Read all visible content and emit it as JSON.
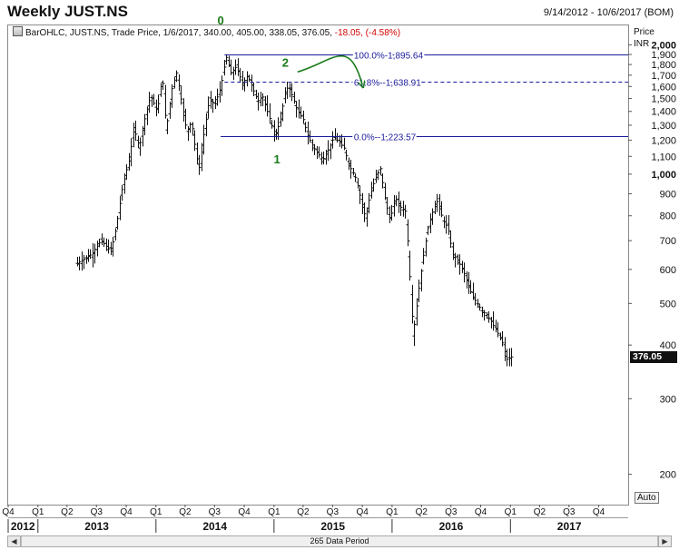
{
  "header": {
    "title": "Weekly JUST.NS",
    "date_range": "9/14/2012 - 10/6/2017 (BOM)"
  },
  "legend": {
    "prefix": "BarOHLC, JUST.NS, Trade Price, 1/6/2017, 340.00, 405.00, 338.05, 376.05,",
    "change": "-18.05, (-4.58%)"
  },
  "axis": {
    "price_label": "Price",
    "currency": "INR",
    "auto_label": "Auto",
    "last_price": "376.05"
  },
  "footer": {
    "data_period": "265 Data Period",
    "scroll_left": "◀",
    "scroll_right": "▶"
  },
  "chart_data": {
    "type": "ohlc",
    "title": "Weekly JUST.NS",
    "y_scale": "log",
    "ylim": [
      170,
      2220
    ],
    "y_ticks": [
      {
        "v": 2000,
        "label": "2,000",
        "bold": true
      },
      {
        "v": 1900,
        "label": "1,900"
      },
      {
        "v": 1800,
        "label": "1,800"
      },
      {
        "v": 1700,
        "label": "1,700"
      },
      {
        "v": 1600,
        "label": "1,600"
      },
      {
        "v": 1500,
        "label": "1,500"
      },
      {
        "v": 1400,
        "label": "1,400"
      },
      {
        "v": 1300,
        "label": "1,300"
      },
      {
        "v": 1200,
        "label": "1,200"
      },
      {
        "v": 1100,
        "label": "1,100"
      },
      {
        "v": 1000,
        "label": "1,000",
        "bold": true
      },
      {
        "v": 900,
        "label": "900"
      },
      {
        "v": 800,
        "label": "800"
      },
      {
        "v": 700,
        "label": "700"
      },
      {
        "v": 600,
        "label": "600"
      },
      {
        "v": 500,
        "label": "500"
      },
      {
        "v": 400,
        "label": "400"
      },
      {
        "v": 300,
        "label": "300"
      },
      {
        "v": 200,
        "label": "200"
      }
    ],
    "x_range": [
      "2012-10-01",
      "2017-12-31"
    ],
    "quarters": [
      {
        "d": "2012-10-01",
        "label": "Q4"
      },
      {
        "d": "2013-01-01",
        "label": "Q1"
      },
      {
        "d": "2013-04-01",
        "label": "Q2"
      },
      {
        "d": "2013-07-01",
        "label": "Q3"
      },
      {
        "d": "2013-10-01",
        "label": "Q4"
      },
      {
        "d": "2014-01-01",
        "label": "Q1"
      },
      {
        "d": "2014-04-01",
        "label": "Q2"
      },
      {
        "d": "2014-07-01",
        "label": "Q3"
      },
      {
        "d": "2014-10-01",
        "label": "Q4"
      },
      {
        "d": "2015-01-01",
        "label": "Q1"
      },
      {
        "d": "2015-04-01",
        "label": "Q2"
      },
      {
        "d": "2015-07-01",
        "label": "Q3"
      },
      {
        "d": "2015-10-01",
        "label": "Q4"
      },
      {
        "d": "2016-01-01",
        "label": "Q1"
      },
      {
        "d": "2016-04-01",
        "label": "Q2"
      },
      {
        "d": "2016-07-01",
        "label": "Q3"
      },
      {
        "d": "2016-10-01",
        "label": "Q4"
      },
      {
        "d": "2017-01-01",
        "label": "Q1"
      },
      {
        "d": "2017-04-01",
        "label": "Q2"
      },
      {
        "d": "2017-07-01",
        "label": "Q3"
      },
      {
        "d": "2017-10-01",
        "label": "Q4"
      }
    ],
    "years": [
      {
        "label": "2012",
        "start": "2012-10-01",
        "end": "2012-12-31"
      },
      {
        "label": "2013",
        "start": "2013-01-01",
        "end": "2013-12-31"
      },
      {
        "label": "2014",
        "start": "2014-01-01",
        "end": "2014-12-31"
      },
      {
        "label": "2015",
        "start": "2015-01-01",
        "end": "2015-12-31"
      },
      {
        "label": "2016",
        "start": "2016-01-01",
        "end": "2016-12-31"
      },
      {
        "label": "2017",
        "start": "2017-01-01",
        "end": "2017-12-31"
      }
    ],
    "price_path": [
      [
        "2013-05-01",
        620
      ],
      [
        "2013-06-15",
        650
      ],
      [
        "2013-07-15",
        700
      ],
      [
        "2013-08-15",
        660
      ],
      [
        "2013-09-01",
        760
      ],
      [
        "2013-09-20",
        940
      ],
      [
        "2013-10-10",
        1080
      ],
      [
        "2013-10-25",
        1280
      ],
      [
        "2013-11-10",
        1150
      ],
      [
        "2013-11-30",
        1380
      ],
      [
        "2013-12-15",
        1520
      ],
      [
        "2014-01-05",
        1400
      ],
      [
        "2014-01-20",
        1700
      ],
      [
        "2014-02-01",
        1260
      ],
      [
        "2014-02-20",
        1600
      ],
      [
        "2014-03-05",
        1720
      ],
      [
        "2014-03-20",
        1480
      ],
      [
        "2014-04-05",
        1260
      ],
      [
        "2014-04-20",
        1320
      ],
      [
        "2014-05-05",
        1100
      ],
      [
        "2014-05-15",
        1030
      ],
      [
        "2014-06-01",
        1300
      ],
      [
        "2014-06-15",
        1500
      ],
      [
        "2014-07-01",
        1450
      ],
      [
        "2014-07-20",
        1600
      ],
      [
        "2014-08-05",
        1880
      ],
      [
        "2014-08-20",
        1720
      ],
      [
        "2014-09-05",
        1780
      ],
      [
        "2014-09-25",
        1620
      ],
      [
        "2014-10-10",
        1700
      ],
      [
        "2014-10-25",
        1590
      ],
      [
        "2014-11-10",
        1480
      ],
      [
        "2014-11-25",
        1520
      ],
      [
        "2014-12-10",
        1400
      ],
      [
        "2014-12-25",
        1290
      ],
      [
        "2015-01-05",
        1230
      ],
      [
        "2015-01-20",
        1330
      ],
      [
        "2015-02-05",
        1550
      ],
      [
        "2015-02-15",
        1610
      ],
      [
        "2015-03-01",
        1500
      ],
      [
        "2015-03-15",
        1400
      ],
      [
        "2015-04-01",
        1340
      ],
      [
        "2015-04-15",
        1230
      ],
      [
        "2015-05-01",
        1160
      ],
      [
        "2015-05-15",
        1120
      ],
      [
        "2015-06-01",
        1080
      ],
      [
        "2015-06-20",
        1150
      ],
      [
        "2015-07-05",
        1220
      ],
      [
        "2015-07-20",
        1190
      ],
      [
        "2015-08-05",
        1150
      ],
      [
        "2015-08-20",
        1050
      ],
      [
        "2015-09-10",
        980
      ],
      [
        "2015-09-25",
        880
      ],
      [
        "2015-10-10",
        790
      ],
      [
        "2015-10-25",
        900
      ],
      [
        "2015-11-10",
        980
      ],
      [
        "2015-11-25",
        1030
      ],
      [
        "2015-12-10",
        870
      ],
      [
        "2015-12-25",
        780
      ],
      [
        "2016-01-10",
        880
      ],
      [
        "2016-01-25",
        840
      ],
      [
        "2016-02-10",
        820
      ],
      [
        "2016-02-25",
        560
      ],
      [
        "2016-03-05",
        420
      ],
      [
        "2016-03-20",
        520
      ],
      [
        "2016-04-05",
        640
      ],
      [
        "2016-04-20",
        750
      ],
      [
        "2016-05-05",
        820
      ],
      [
        "2016-05-20",
        870
      ],
      [
        "2016-06-05",
        780
      ],
      [
        "2016-06-20",
        750
      ],
      [
        "2016-07-05",
        650
      ],
      [
        "2016-07-20",
        630
      ],
      [
        "2016-08-05",
        600
      ],
      [
        "2016-08-20",
        560
      ],
      [
        "2016-09-05",
        520
      ],
      [
        "2016-09-20",
        500
      ],
      [
        "2016-10-05",
        480
      ],
      [
        "2016-10-20",
        470
      ],
      [
        "2016-11-05",
        450
      ],
      [
        "2016-11-20",
        430
      ],
      [
        "2016-12-05",
        410
      ],
      [
        "2016-12-20",
        370
      ],
      [
        "2017-01-06",
        376
      ]
    ],
    "fib_levels": [
      {
        "label": "100.0%-1,895.64",
        "price": 1895.64,
        "start": "2014-08-01",
        "style": "solid"
      },
      {
        "label": "61.8%--1,638.91",
        "price": 1638.91,
        "start": "2014-08-01",
        "style": "dashed"
      },
      {
        "label": "0.0%--1,223.57",
        "price": 1223.57,
        "start": "2014-07-20",
        "style": "solid"
      }
    ],
    "wave_labels": [
      {
        "label": "0",
        "d": "2014-07-20",
        "price": 2230
      },
      {
        "label": "1",
        "d": "2015-01-10",
        "price": 1060
      },
      {
        "label": "2",
        "d": "2015-02-05",
        "price": 1780
      }
    ],
    "arrow": {
      "from": [
        "2015-03-15",
        1730
      ],
      "to": [
        "2015-10-01",
        1680
      ]
    },
    "colors": {
      "bars": "#111111",
      "fib": "#1a1a9c",
      "annotation": "#1a7a1a",
      "grid_text": "#111111"
    }
  }
}
